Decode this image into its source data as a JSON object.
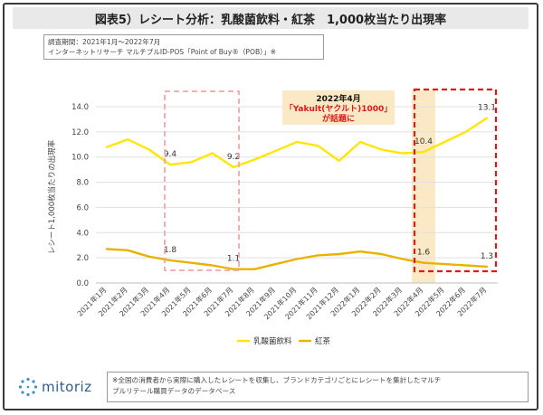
{
  "title": "図表5）レシート分析：乳酸菌飲料・紅茶　1,000枚当たり出現率",
  "meta": {
    "period": "調査期間：2021年1月～2022年7月",
    "source": "インターネットリサーチ マルチプルID-POS「Point of Buy®（POB）」※"
  },
  "annotation": {
    "line1": "2022年4月",
    "line2": "「Yakult(ヤクルト)1000」",
    "line3": "が話題に"
  },
  "footnote": {
    "line1": "※全国の消費者から実際に購入したレシートを収集し、ブランドカテゴリごとにレシートを集計したマルチ",
    "line2": "プルリテール購買データのデータベース"
  },
  "logo": {
    "name": "mitoriz",
    "icon": "mitoriz-logo-icon"
  },
  "chart_data": {
    "type": "line",
    "categories": [
      "2021年1月",
      "2021年2月",
      "2021年3月",
      "2021年4月",
      "2021年5月",
      "2021年6月",
      "2021年7月",
      "2021年8月",
      "2021年9月",
      "2021年10月",
      "2021年11月",
      "2021年12月",
      "2022年1月",
      "2022年2月",
      "2022年3月",
      "2022年4月",
      "2022年5月",
      "2022年6月",
      "2022年7月"
    ],
    "ylabel": "レシート1,000枚当たりの出現率",
    "ylim": [
      0,
      14
    ],
    "yticks": [
      0,
      2,
      4,
      6,
      8,
      10,
      12,
      14
    ],
    "ytick_labels": [
      "0.0",
      "2.0",
      "4.0",
      "6.0",
      "8.0",
      "10.0",
      "12.0",
      "14.0"
    ],
    "grid": true,
    "legend": "bottom",
    "series": [
      {
        "name": "乳酸菌飲料",
        "color": "#ffe600",
        "values": [
          10.8,
          11.4,
          10.6,
          9.4,
          9.6,
          10.3,
          9.2,
          9.8,
          10.5,
          11.2,
          10.9,
          9.7,
          11.2,
          10.6,
          10.3,
          10.4,
          11.2,
          12.0,
          13.1
        ],
        "labels": [
          {
            "index": 3,
            "text": "9.4"
          },
          {
            "index": 6,
            "text": "9.2"
          },
          {
            "index": 15,
            "text": "10.4"
          },
          {
            "index": 18,
            "text": "13.1"
          }
        ]
      },
      {
        "name": "紅茶",
        "color": "#e8b200",
        "values": [
          2.7,
          2.6,
          2.1,
          1.8,
          1.6,
          1.4,
          1.1,
          1.1,
          1.5,
          1.9,
          2.2,
          2.3,
          2.5,
          2.3,
          1.9,
          1.6,
          1.5,
          1.4,
          1.3
        ],
        "labels": [
          {
            "index": 3,
            "text": "1.8"
          },
          {
            "index": 6,
            "text": "1.1"
          },
          {
            "index": 15,
            "text": "1.6"
          },
          {
            "index": 18,
            "text": "1.3"
          }
        ]
      }
    ],
    "highlight_boxes": [
      {
        "from_index": 3,
        "to_index": 6,
        "style": "dashed",
        "color": "#f2a6a6"
      },
      {
        "from_index": 15,
        "to_index": 18,
        "style": "dashed",
        "color": "#d91a1a"
      }
    ],
    "highlight_band": {
      "index": 15,
      "color": "#fbe9c6"
    },
    "annotation_colors": {
      "line1": "#111111",
      "line2": "#d91a1a",
      "line3": "#d91a1a",
      "background": "#fbe9c6"
    }
  }
}
